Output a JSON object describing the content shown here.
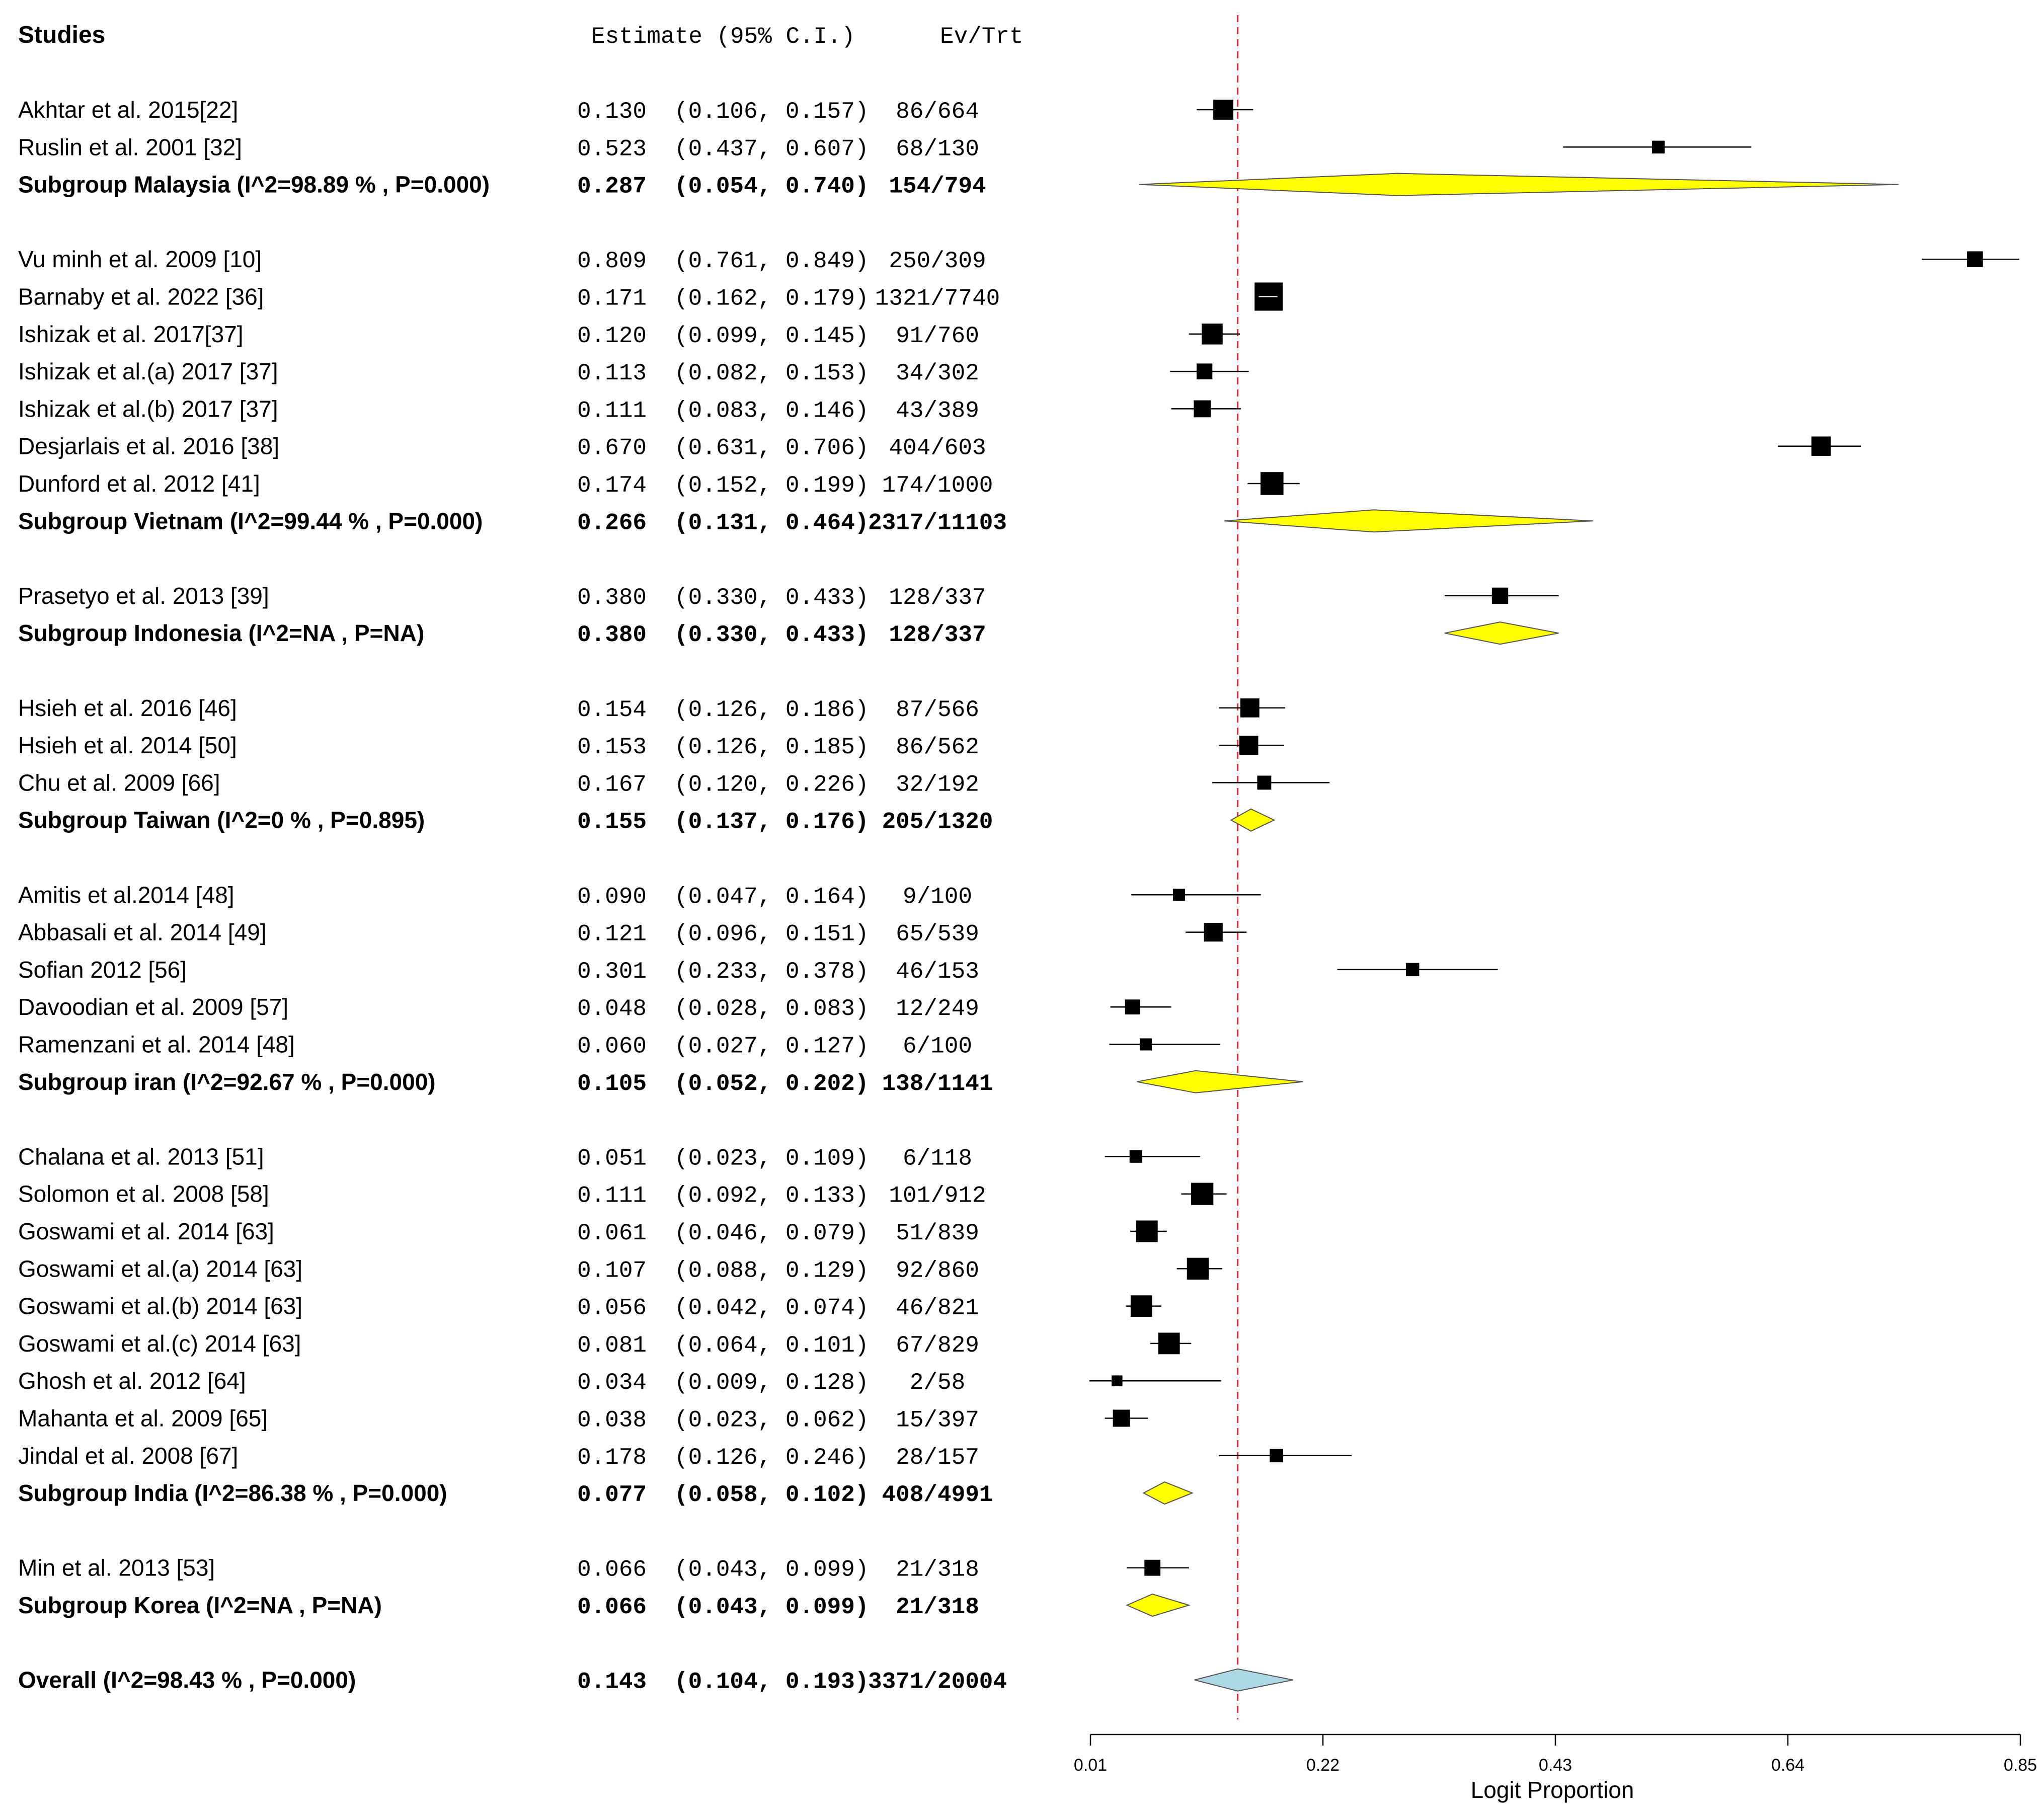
{
  "chart_data": {
    "type": "forest",
    "headers": {
      "studies": "Studies",
      "estimate": "Estimate (95% C.I.)",
      "events": "Ev/Trt"
    },
    "xlabel": "Logit Proportion",
    "xlim": [
      0.01,
      0.85
    ],
    "ticks": [
      0.01,
      0.22,
      0.43,
      0.64,
      0.85
    ],
    "tick_labels": [
      "0.01",
      "0.22",
      "0.43",
      "0.64",
      "0.85"
    ],
    "reference_line": 0.143,
    "reference_line_color": "#e8202a",
    "subgroup_color": "#ffff00",
    "overall_color": "#add8e6",
    "rows": [
      {
        "type": "study",
        "label": "Akhtar et al. 2015[22]",
        "est": 0.13,
        "lo": 0.106,
        "hi": 0.157,
        "est_text": "0.130",
        "ci_text": "(0.106, 0.157)",
        "ev": "86/664"
      },
      {
        "type": "study",
        "label": "Ruslin et al. 2001 [32]",
        "est": 0.523,
        "lo": 0.437,
        "hi": 0.607,
        "est_text": "0.523",
        "ci_text": "(0.437, 0.607)",
        "ev": "68/130"
      },
      {
        "type": "subgroup",
        "label": "Subgroup Malaysia  (I^2=98.89 % , P=0.000)",
        "est": 0.287,
        "lo": 0.054,
        "hi": 0.74,
        "est_text": "0.287",
        "ci_text": "(0.054, 0.740)",
        "ev": "154/794"
      },
      {
        "type": "gap"
      },
      {
        "type": "study",
        "label": "Vu minh et al. 2009 [10]",
        "est": 0.809,
        "lo": 0.761,
        "hi": 0.849,
        "est_text": "0.809",
        "ci_text": "(0.761, 0.849)",
        "ev": "250/309"
      },
      {
        "type": "study",
        "label": "Barnaby et al. 2022 [36]",
        "est": 0.171,
        "lo": 0.162,
        "hi": 0.179,
        "est_text": "0.171",
        "ci_text": "(0.162, 0.179)",
        "ev": "1321/7740"
      },
      {
        "type": "study",
        "label": "Ishizak et al. 2017[37]",
        "est": 0.12,
        "lo": 0.099,
        "hi": 0.145,
        "est_text": "0.120",
        "ci_text": "(0.099, 0.145)",
        "ev": "91/760"
      },
      {
        "type": "study",
        "label": "Ishizak et al.(a) 2017 [37]",
        "est": 0.113,
        "lo": 0.082,
        "hi": 0.153,
        "est_text": "0.113",
        "ci_text": "(0.082, 0.153)",
        "ev": "34/302"
      },
      {
        "type": "study",
        "label": "Ishizak et al.(b) 2017 [37]",
        "est": 0.111,
        "lo": 0.083,
        "hi": 0.146,
        "est_text": "0.111",
        "ci_text": "(0.083, 0.146)",
        "ev": "43/389"
      },
      {
        "type": "study",
        "label": "Desjarlais et al. 2016 [38]",
        "est": 0.67,
        "lo": 0.631,
        "hi": 0.706,
        "est_text": "0.670",
        "ci_text": "(0.631, 0.706)",
        "ev": "404/603"
      },
      {
        "type": "study",
        "label": "Dunford et al. 2012 [41]",
        "est": 0.174,
        "lo": 0.152,
        "hi": 0.199,
        "est_text": "0.174",
        "ci_text": "(0.152, 0.199)",
        "ev": "174/1000"
      },
      {
        "type": "subgroup",
        "label": "Subgroup Vietnam  (I^2=99.44 % , P=0.000)",
        "est": 0.266,
        "lo": 0.131,
        "hi": 0.464,
        "est_text": "0.266",
        "ci_text": "(0.131, 0.464)",
        "ev": "2317/11103"
      },
      {
        "type": "gap"
      },
      {
        "type": "study",
        "label": "Prasetyo et al. 2013 [39]",
        "est": 0.38,
        "lo": 0.33,
        "hi": 0.433,
        "est_text": "0.380",
        "ci_text": "(0.330, 0.433)",
        "ev": "128/337"
      },
      {
        "type": "subgroup",
        "label": "Subgroup Indonesia  (I^2=NA , P=NA)",
        "est": 0.38,
        "lo": 0.33,
        "hi": 0.433,
        "est_text": "0.380",
        "ci_text": "(0.330, 0.433)",
        "ev": "128/337"
      },
      {
        "type": "gap"
      },
      {
        "type": "study",
        "label": " Hsieh et al. 2016 [46]",
        "est": 0.154,
        "lo": 0.126,
        "hi": 0.186,
        "est_text": "0.154",
        "ci_text": "(0.126, 0.186)",
        "ev": "87/566"
      },
      {
        "type": "study",
        "label": "Hsieh et al. 2014 [50]",
        "est": 0.153,
        "lo": 0.126,
        "hi": 0.185,
        "est_text": "0.153",
        "ci_text": "(0.126, 0.185)",
        "ev": "86/562"
      },
      {
        "type": "study",
        "label": "Chu et al. 2009 [66]",
        "est": 0.167,
        "lo": 0.12,
        "hi": 0.226,
        "est_text": "0.167",
        "ci_text": "(0.120, 0.226)",
        "ev": "32/192"
      },
      {
        "type": "subgroup",
        "label": "Subgroup Taiwan  (I^2=0 % , P=0.895)",
        "est": 0.155,
        "lo": 0.137,
        "hi": 0.176,
        "est_text": "0.155",
        "ci_text": "(0.137, 0.176)",
        "ev": "205/1320"
      },
      {
        "type": "gap"
      },
      {
        "type": "study",
        "label": "Amitis et al.2014  [48]",
        "est": 0.09,
        "lo": 0.047,
        "hi": 0.164,
        "est_text": "0.090",
        "ci_text": "(0.047, 0.164)",
        "ev": "9/100"
      },
      {
        "type": "study",
        "label": "Abbasali et al. 2014 [49]",
        "est": 0.121,
        "lo": 0.096,
        "hi": 0.151,
        "est_text": "0.121",
        "ci_text": "(0.096, 0.151)",
        "ev": "65/539"
      },
      {
        "type": "study",
        "label": "Sofian 2012 [56]",
        "est": 0.301,
        "lo": 0.233,
        "hi": 0.378,
        "est_text": "0.301",
        "ci_text": "(0.233, 0.378)",
        "ev": "46/153"
      },
      {
        "type": "study",
        "label": "Davoodian et al. 2009 [57]",
        "est": 0.048,
        "lo": 0.028,
        "hi": 0.083,
        "est_text": "0.048",
        "ci_text": "(0.028, 0.083)",
        "ev": "12/249"
      },
      {
        "type": "study",
        "label": "Ramenzani et al. 2014 [48]",
        "est": 0.06,
        "lo": 0.027,
        "hi": 0.127,
        "est_text": "0.060",
        "ci_text": "(0.027, 0.127)",
        "ev": "6/100"
      },
      {
        "type": "subgroup",
        "label": "Subgroup iran  (I^2=92.67 % , P=0.000)",
        "est": 0.105,
        "lo": 0.052,
        "hi": 0.202,
        "est_text": "0.105",
        "ci_text": "(0.052, 0.202)",
        "ev": "138/1141"
      },
      {
        "type": "gap"
      },
      {
        "type": "study",
        "label": "Chalana et al. 2013 [51]",
        "est": 0.051,
        "lo": 0.023,
        "hi": 0.109,
        "est_text": "0.051",
        "ci_text": "(0.023, 0.109)",
        "ev": "6/118"
      },
      {
        "type": "study",
        "label": "Solomon et al. 2008 [58]",
        "est": 0.111,
        "lo": 0.092,
        "hi": 0.133,
        "est_text": "0.111",
        "ci_text": "(0.092, 0.133)",
        "ev": "101/912"
      },
      {
        "type": "study",
        "label": "Goswami et al. 2014 [63]",
        "est": 0.061,
        "lo": 0.046,
        "hi": 0.079,
        "est_text": "0.061",
        "ci_text": "(0.046, 0.079)",
        "ev": "51/839"
      },
      {
        "type": "study",
        "label": "Goswami et al.(a) 2014 [63]",
        "est": 0.107,
        "lo": 0.088,
        "hi": 0.129,
        "est_text": "0.107",
        "ci_text": "(0.088, 0.129)",
        "ev": "92/860"
      },
      {
        "type": "study",
        "label": "Goswami et al.(b) 2014 [63]",
        "est": 0.056,
        "lo": 0.042,
        "hi": 0.074,
        "est_text": "0.056",
        "ci_text": "(0.042, 0.074)",
        "ev": "46/821"
      },
      {
        "type": "study",
        "label": "Goswami et al.(c) 2014 [63]",
        "est": 0.081,
        "lo": 0.064,
        "hi": 0.101,
        "est_text": "0.081",
        "ci_text": "(0.064, 0.101)",
        "ev": "67/829"
      },
      {
        "type": "study",
        "label": "Ghosh et al. 2012 [64]",
        "est": 0.034,
        "lo": 0.009,
        "hi": 0.128,
        "est_text": "0.034",
        "ci_text": "(0.009, 0.128)",
        "ev": "2/58"
      },
      {
        "type": "study",
        "label": "Mahanta et al. 2009 [65]",
        "est": 0.038,
        "lo": 0.023,
        "hi": 0.062,
        "est_text": "0.038",
        "ci_text": "(0.023, 0.062)",
        "ev": "15/397"
      },
      {
        "type": "study",
        "label": "Jindal et al. 2008 [67]",
        "est": 0.178,
        "lo": 0.126,
        "hi": 0.246,
        "est_text": "0.178",
        "ci_text": "(0.126, 0.246)",
        "ev": "28/157"
      },
      {
        "type": "subgroup",
        "label": "Subgroup India  (I^2=86.38 % , P=0.000)",
        "est": 0.077,
        "lo": 0.058,
        "hi": 0.102,
        "est_text": "0.077",
        "ci_text": "(0.058, 0.102)",
        "ev": "408/4991"
      },
      {
        "type": "gap"
      },
      {
        "type": "study",
        "label": "Min et al. 2013  [53]",
        "est": 0.066,
        "lo": 0.043,
        "hi": 0.099,
        "est_text": "0.066",
        "ci_text": "(0.043, 0.099)",
        "ev": "21/318"
      },
      {
        "type": "subgroup",
        "label": "Subgroup Korea  (I^2=NA , P=NA)",
        "est": 0.066,
        "lo": 0.043,
        "hi": 0.099,
        "est_text": "0.066",
        "ci_text": "(0.043, 0.099)",
        "ev": "21/318"
      },
      {
        "type": "gap"
      },
      {
        "type": "overall",
        "label": "Overall (I^2=98.43 % , P=0.000)",
        "est": 0.143,
        "lo": 0.104,
        "hi": 0.193,
        "est_text": "0.143",
        "ci_text": "(0.104, 0.193)",
        "ev": "3371/20004"
      }
    ]
  }
}
